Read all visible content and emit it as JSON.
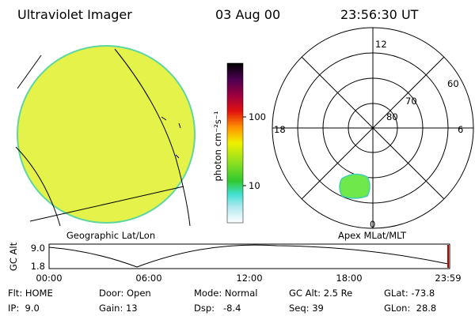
{
  "header": {
    "title": "Ultraviolet Imager",
    "date": "03 Aug 00",
    "time": "23:56:30 UT"
  },
  "left_panel": {
    "label": "Geographic Lat/Lon"
  },
  "colorbar": {
    "unit": "photon cm⁻²s⁻¹",
    "ticks": [
      "100",
      "10"
    ]
  },
  "right_panel": {
    "label": "Apex MLat/MLT",
    "rings": [
      "60",
      "70",
      "80"
    ],
    "hours": [
      "12",
      "18",
      "6",
      "0"
    ]
  },
  "timeline": {
    "axis_label": "GC Alt",
    "y_ticks": [
      "9.0",
      "1.8"
    ],
    "x_ticks": [
      "00:00",
      "06:00",
      "12:00",
      "18:00",
      "23:59"
    ]
  },
  "info": {
    "rows": [
      [
        "Flt: HOME",
        "Door: Open",
        "Mode: Normal",
        "GC Alt: 2.5 Re",
        "GLat: -73.8"
      ],
      [
        "IP:  9.0",
        "Gain: 13",
        "Dsp:   -8.4",
        "Seq: 39",
        "GLon:  28.8"
      ]
    ]
  }
}
